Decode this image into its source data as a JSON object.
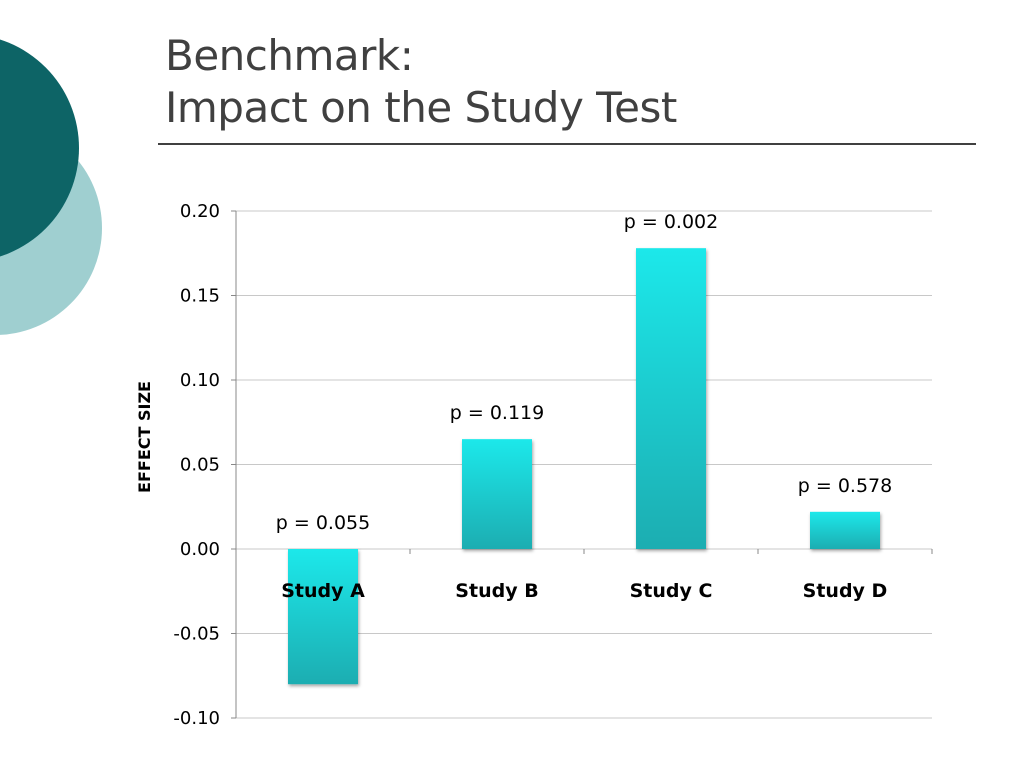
{
  "slide": {
    "title_line1": "Benchmark:",
    "title_line2": "Impact on the Study Test"
  },
  "colors": {
    "deco_dark": "#0d6466",
    "deco_light": "#9fcfd0",
    "bar_top": "#1ee8ea",
    "bar_bottom": "#1aadb1",
    "grid": "#c8c8c8",
    "text": "#000000",
    "title": "#404040"
  },
  "chart_data": {
    "type": "bar",
    "title": "",
    "xlabel": "",
    "ylabel": "EFFECT SIZE",
    "ylim": [
      -0.1,
      0.2
    ],
    "y_ticks": [
      "0.20",
      "0.15",
      "0.10",
      "0.05",
      "0.00",
      "-0.05",
      "-0.10"
    ],
    "y_tick_values": [
      0.2,
      0.15,
      0.1,
      0.05,
      0.0,
      -0.05,
      -0.1
    ],
    "categories": [
      "Study A",
      "Study B",
      "Study C",
      "Study D"
    ],
    "values": [
      -0.08,
      0.065,
      0.178,
      0.022
    ],
    "data_labels": [
      "p = 0.055",
      "p = 0.119",
      "p = 0.002",
      "p = 0.578"
    ],
    "grid": true,
    "legend": "none"
  }
}
